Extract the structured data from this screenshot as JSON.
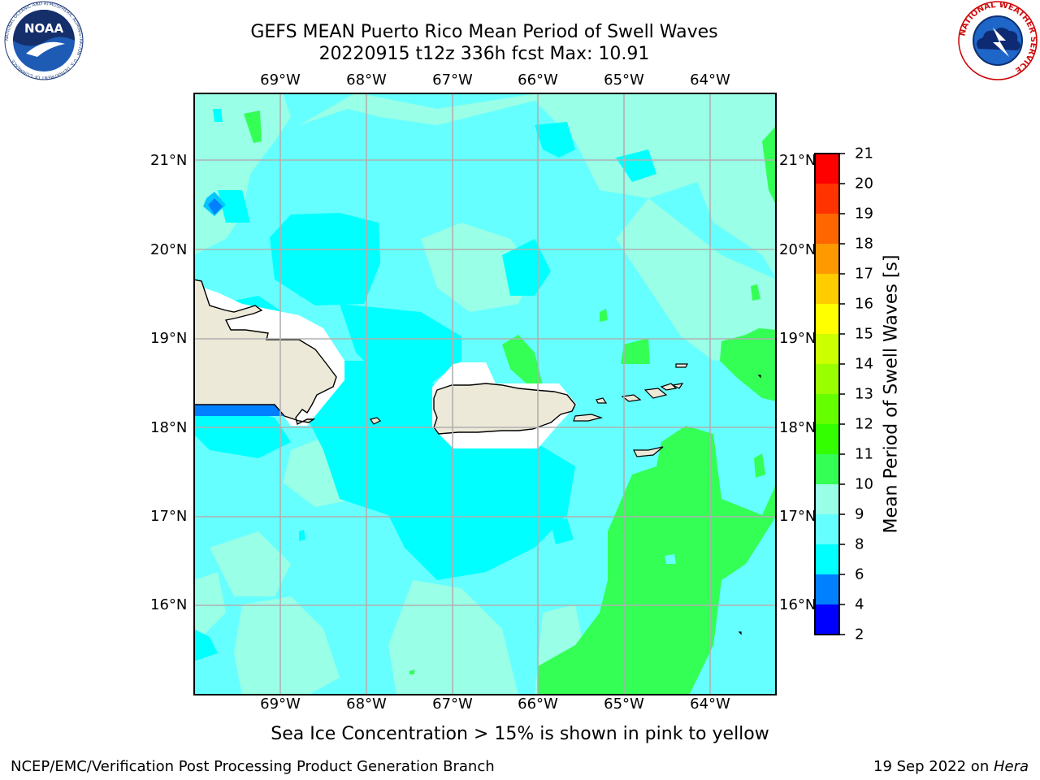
{
  "title": {
    "line1": "GEFS MEAN Puerto Rico Mean Period of Swell Waves",
    "line2": "20220915 t12z 336h fcst   Max: 10.91"
  },
  "map": {
    "lon_labels": [
      "69°W",
      "68°W",
      "67°W",
      "66°W",
      "65°W",
      "64°W"
    ],
    "lat_labels": [
      "21°N",
      "20°N",
      "19°N",
      "18°N",
      "17°N",
      "16°N"
    ],
    "colors": {
      "land": "#ede9d8",
      "ice_mask": "#ffffff",
      "grid": "#b0b0b0",
      "coast": "#000000"
    }
  },
  "colorbar": {
    "label": "Mean Period of Swell Waves [s]",
    "ticks": [
      "21",
      "20",
      "19",
      "18",
      "17",
      "16",
      "15",
      "14",
      "13",
      "12",
      "11",
      "10",
      "9",
      "8",
      "6",
      "4",
      "2"
    ],
    "colors": {
      "2-4": "#0000ff",
      "4-6": "#0080ff",
      "6-8": "#00ffff",
      "8-9": "#66ffff",
      "9-10": "#99ffe6",
      "10-11": "#33ff55",
      "11-12": "#33ff00",
      "12-13": "#66ff00",
      "13-14": "#99ff00",
      "14-15": "#ccff00",
      "15-16": "#ffff00",
      "16-17": "#ffcc00",
      "17-18": "#ff9900",
      "18-19": "#ff6600",
      "19-20": "#ff3300",
      "20-21": "#ff0000"
    }
  },
  "caption": "Sea Ice Concentration > 15% is shown in pink to yellow",
  "footer": {
    "left": "NCEP/EMC/Verification Post Processing Product Generation Branch",
    "right_prefix": "19 Sep 2022 on ",
    "right_machine": "Hera"
  },
  "logos": {
    "noaa_text": "NOAA",
    "noaa_ring": "NATIONAL OCEANIC AND ATMOSPHERIC ADMINISTRATION · U.S. DEPARTMENT OF COMMERCE",
    "nws_ring": "NATIONAL WEATHER SERVICE"
  }
}
